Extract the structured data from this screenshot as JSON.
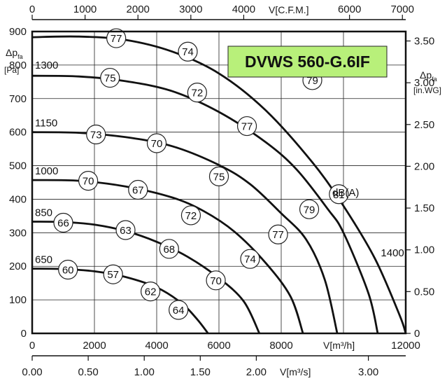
{
  "chart_data": {
    "type": "line",
    "title": "DVWS 560-G.6IF",
    "x_axis_main": {
      "label": "V[m³/h]",
      "ticks": [
        "0",
        "2000",
        "4000",
        "6000",
        "8000",
        "12000"
      ],
      "range": [
        0,
        12000
      ]
    },
    "x_axis_top": {
      "label": "V[C.F.M.]",
      "ticks": [
        "0",
        "1000",
        "2000",
        "3000",
        "4000",
        "6000",
        "7000"
      ]
    },
    "x_axis_bottom": {
      "label": "V[m³/s]",
      "ticks": [
        "0.00",
        "0.50",
        "1.00",
        "1.50",
        "2.00",
        "3.00"
      ]
    },
    "y_axis_left": {
      "label": "Δp",
      "label_sub": "fa",
      "unit": "[Pa]",
      "ticks": [
        "0",
        "100",
        "200",
        "300",
        "400",
        "500",
        "600",
        "700",
        "800",
        "900"
      ],
      "range": [
        0,
        900
      ]
    },
    "y_axis_right": {
      "label": "Δp",
      "label_sub": "fa",
      "unit": "[in.WG]",
      "ticks": [
        "0",
        "0.50",
        "1.00",
        "1.50",
        "2.00",
        "2.50",
        "3.00",
        "3.50"
      ]
    },
    "extra_labels": {
      "dba": "dB(A)"
    },
    "series": [
      {
        "name": "1400",
        "points": [
          [
            0,
            883
          ],
          [
            1500,
            885
          ],
          [
            3000,
            875
          ],
          [
            4500,
            840
          ],
          [
            6000,
            775
          ],
          [
            7500,
            665
          ],
          [
            9000,
            510
          ],
          [
            10000,
            380
          ],
          [
            11000,
            225
          ],
          [
            11800,
            55
          ],
          [
            12000,
            0
          ]
        ],
        "db_labels": [
          {
            "value": "77",
            "x": 2700,
            "y": 880
          },
          {
            "value": "74",
            "x": 5000,
            "y": 840
          },
          {
            "value": "79",
            "x": 9000,
            "y": 755
          },
          {
            "value": "81",
            "x": 9850,
            "y": 415
          }
        ]
      },
      {
        "name": "1300",
        "points": [
          [
            0,
            768
          ],
          [
            1500,
            766
          ],
          [
            3000,
            752
          ],
          [
            4500,
            722
          ],
          [
            6000,
            660
          ],
          [
            7500,
            570
          ],
          [
            8500,
            488
          ],
          [
            9500,
            370
          ],
          [
            10000,
            300
          ],
          [
            10800,
            120
          ],
          [
            11100,
            0
          ]
        ],
        "db_labels": [
          {
            "value": "75",
            "x": 2500,
            "y": 762
          },
          {
            "value": "72",
            "x": 5300,
            "y": 718
          },
          {
            "value": "77",
            "x": 6900,
            "y": 618
          },
          {
            "value": "79",
            "x": 8900,
            "y": 370
          }
        ]
      },
      {
        "name": "1150",
        "points": [
          [
            0,
            600
          ],
          [
            1500,
            598
          ],
          [
            3000,
            585
          ],
          [
            4500,
            558
          ],
          [
            6000,
            502
          ],
          [
            7000,
            445
          ],
          [
            8000,
            358
          ],
          [
            8800,
            280
          ],
          [
            9400,
            160
          ],
          [
            9800,
            0
          ]
        ],
        "db_labels": [
          {
            "value": "73",
            "x": 2050,
            "y": 593
          },
          {
            "value": "70",
            "x": 4000,
            "y": 567
          },
          {
            "value": "75",
            "x": 6000,
            "y": 468
          },
          {
            "value": "77",
            "x": 7900,
            "y": 295
          }
        ]
      },
      {
        "name": "1000",
        "points": [
          [
            0,
            457
          ],
          [
            1500,
            455
          ],
          [
            3000,
            438
          ],
          [
            4500,
            405
          ],
          [
            5500,
            365
          ],
          [
            6500,
            303
          ],
          [
            7500,
            210
          ],
          [
            8300,
            110
          ],
          [
            8700,
            0
          ]
        ],
        "db_labels": [
          {
            "value": "70",
            "x": 1800,
            "y": 455
          },
          {
            "value": "67",
            "x": 3400,
            "y": 428
          },
          {
            "value": "72",
            "x": 5100,
            "y": 352
          },
          {
            "value": "74",
            "x": 7000,
            "y": 222
          }
        ]
      },
      {
        "name": "850",
        "points": [
          [
            0,
            333
          ],
          [
            1000,
            332
          ],
          [
            2000,
            324
          ],
          [
            3000,
            305
          ],
          [
            4000,
            273
          ],
          [
            5000,
            228
          ],
          [
            6000,
            165
          ],
          [
            6800,
            95
          ],
          [
            7300,
            0
          ]
        ],
        "db_labels": [
          {
            "value": "66",
            "x": 1000,
            "y": 330
          },
          {
            "value": "63",
            "x": 3000,
            "y": 308
          },
          {
            "value": "68",
            "x": 4400,
            "y": 252
          },
          {
            "value": "70",
            "x": 5900,
            "y": 158
          }
        ]
      },
      {
        "name": "650",
        "points": [
          [
            0,
            193
          ],
          [
            1000,
            192
          ],
          [
            2000,
            185
          ],
          [
            3000,
            168
          ],
          [
            4000,
            137
          ],
          [
            4800,
            90
          ],
          [
            5300,
            42
          ],
          [
            5650,
            0
          ]
        ],
        "db_labels": [
          {
            "value": "60",
            "x": 1150,
            "y": 190
          },
          {
            "value": "57",
            "x": 2600,
            "y": 176
          },
          {
            "value": "62",
            "x": 3800,
            "y": 125
          },
          {
            "value": "64",
            "x": 4700,
            "y": 70
          }
        ]
      }
    ]
  }
}
